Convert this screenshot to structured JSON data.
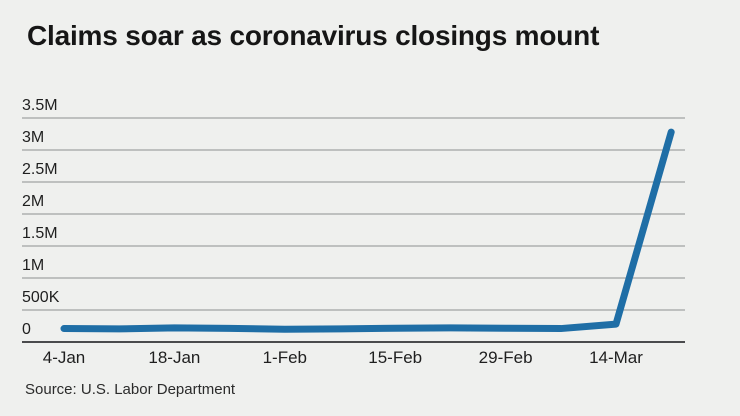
{
  "title": "Claims soar as coronavirus closings mount",
  "source": "Source: U.S. Labor Department",
  "colors": {
    "background": "#eff0ee",
    "line": "#1f6ea6",
    "grid": "#8e8f90",
    "axis": "#4a4b4d",
    "title_text": "#161616",
    "tick_text": "#1f1f1f",
    "source_text": "#2b2b2b"
  },
  "chart_data": {
    "type": "line",
    "title": "Claims soar as coronavirus closings mount",
    "source": "Source: U.S. Labor Department",
    "x": [
      "4-Jan",
      "11-Jan",
      "18-Jan",
      "25-Jan",
      "1-Feb",
      "8-Feb",
      "15-Feb",
      "22-Feb",
      "29-Feb",
      "7-Mar",
      "14-Mar",
      "21-Mar"
    ],
    "values": [
      210000,
      205000,
      220000,
      212000,
      200000,
      205000,
      215000,
      220000,
      215000,
      210000,
      280000,
      3280000
    ],
    "x_tick_labels": [
      "4-Jan",
      "18-Jan",
      "1-Feb",
      "15-Feb",
      "29-Feb",
      "14-Mar"
    ],
    "x_tick_every": 2,
    "y_ticks": [
      0,
      500000,
      1000000,
      1500000,
      2000000,
      2500000,
      3000000,
      3500000
    ],
    "y_tick_labels": [
      "0",
      "500K",
      "1M",
      "1.5M",
      "2M",
      "2.5M",
      "3M",
      "3.5M"
    ],
    "ylim": [
      0,
      3500000
    ],
    "grid": true,
    "legend": false
  }
}
